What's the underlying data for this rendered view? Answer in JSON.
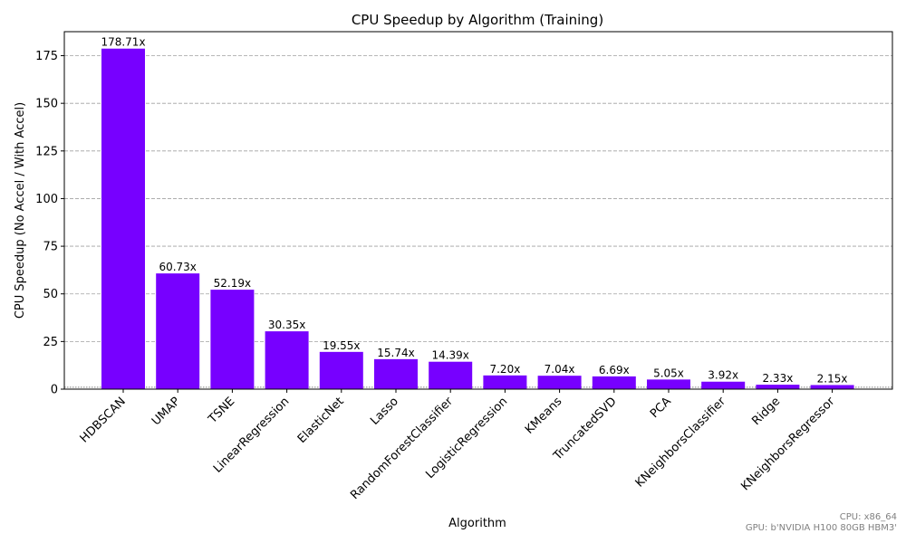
{
  "chart_data": {
    "type": "bar",
    "title": "CPU Speedup by Algorithm (Training)",
    "xlabel": "Algorithm",
    "ylabel": "CPU Speedup (No Accel / With Accel)",
    "categories": [
      "HDBSCAN",
      "UMAP",
      "TSNE",
      "LinearRegression",
      "ElasticNet",
      "Lasso",
      "RandomForestClassifier",
      "LogisticRegression",
      "KMeans",
      "TruncatedSVD",
      "PCA",
      "KNeighborsClassifier",
      "Ridge",
      "KNeighborsRegressor"
    ],
    "values": [
      178.71,
      60.73,
      52.19,
      30.35,
      19.55,
      15.74,
      14.39,
      7.2,
      7.04,
      6.69,
      5.05,
      3.92,
      2.33,
      2.15
    ],
    "data_labels": [
      "178.71x",
      "60.73x",
      "52.19x",
      "30.35x",
      "19.55x",
      "15.74x",
      "14.39x",
      "7.20x",
      "7.04x",
      "6.69x",
      "5.05x",
      "3.92x",
      "2.33x",
      "2.15x"
    ],
    "ylim": [
      0,
      187.6
    ],
    "yticks": [
      0,
      25,
      50,
      75,
      100,
      125,
      150,
      175
    ],
    "ytick_labels": [
      "0",
      "25",
      "50",
      "75",
      "100",
      "125",
      "150",
      "175"
    ],
    "grid": "y-dashed",
    "reference_line": 1,
    "bar_color": "#7700ff"
  },
  "footnote": {
    "cpu": "CPU: x86_64",
    "gpu": "GPU: b'NVIDIA H100 80GB HBM3'"
  }
}
